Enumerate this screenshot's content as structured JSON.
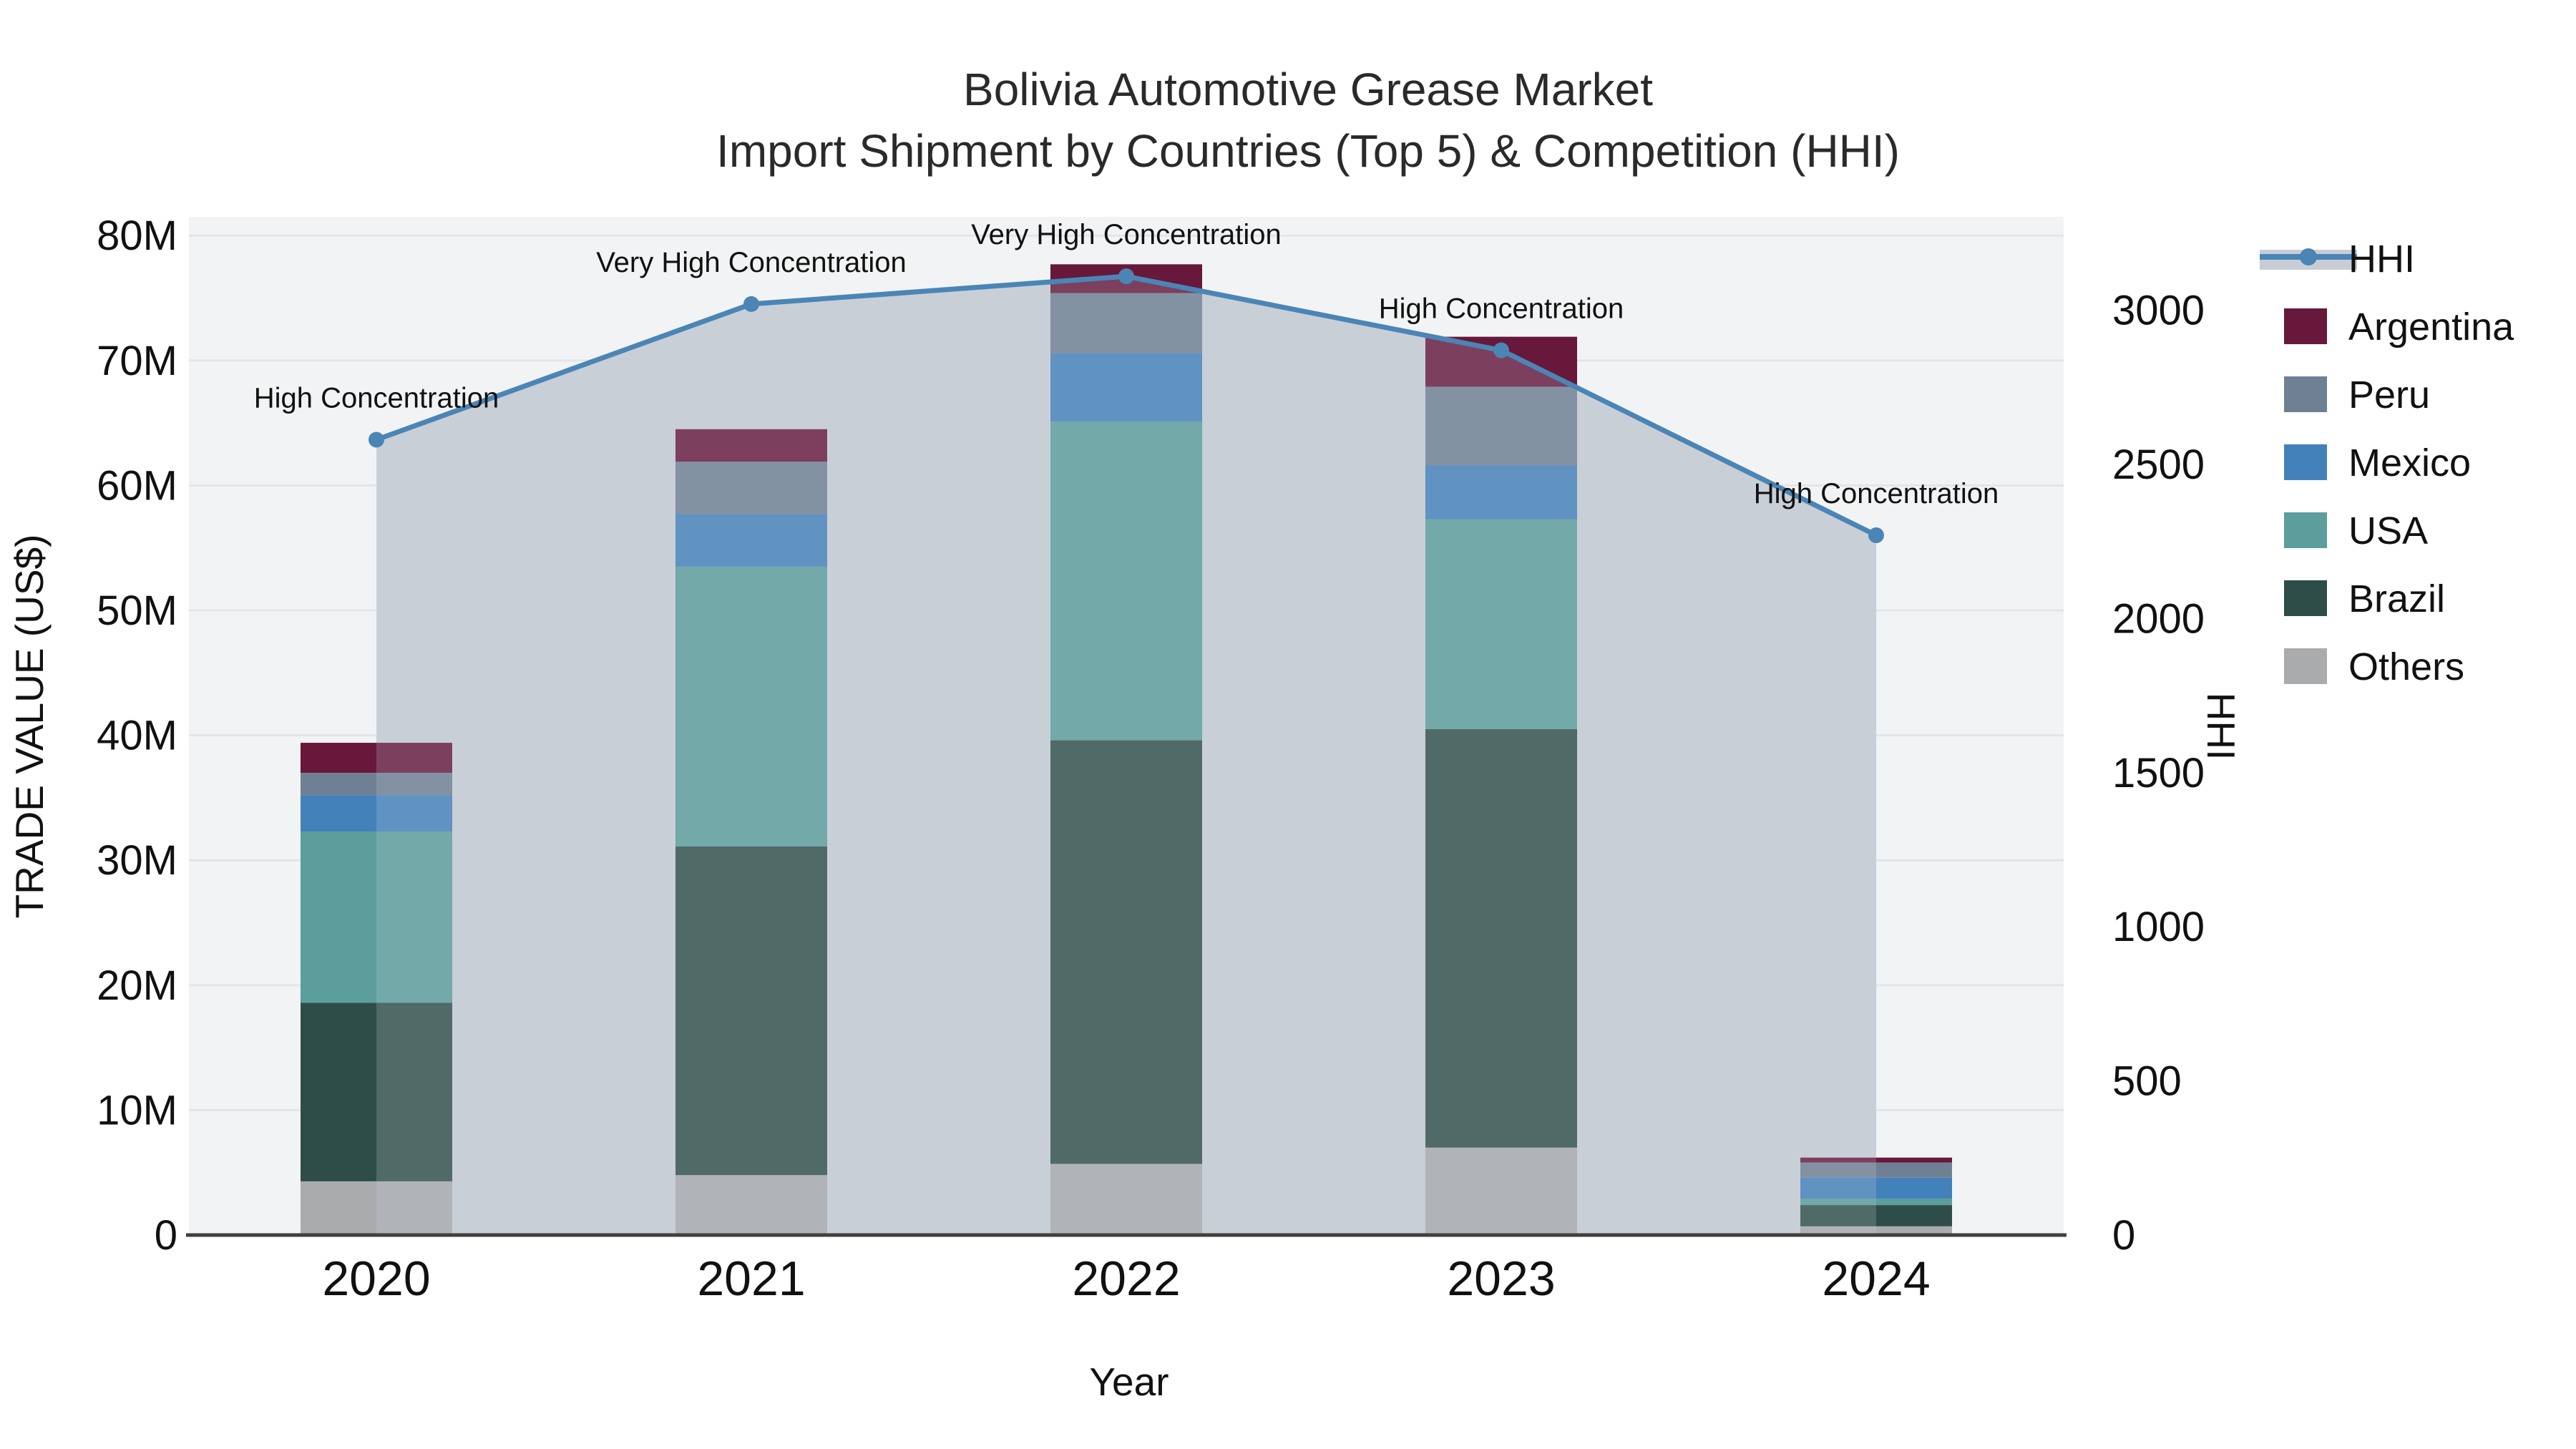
{
  "title": {
    "line1": "Bolivia Automotive Grease Market",
    "line2": "Import Shipment by Countries (Top 5) & Competition (HHI)"
  },
  "axes": {
    "x_title": "Year",
    "y_left_title": "TRADE VALUE (US$)",
    "y_right_title": "HHI",
    "y_left_ticks": [
      "0",
      "10M",
      "20M",
      "30M",
      "40M",
      "50M",
      "60M",
      "70M",
      "80M"
    ],
    "y_right_ticks": [
      "0",
      "500",
      "1000",
      "1500",
      "2000",
      "2500",
      "3000"
    ]
  },
  "legend": {
    "items": [
      {
        "label": "HHI",
        "type": "line+area",
        "color": "#4a85b6"
      },
      {
        "label": "Argentina",
        "type": "swatch",
        "color": "#67183b"
      },
      {
        "label": "Peru",
        "type": "swatch",
        "color": "#708094"
      },
      {
        "label": "Mexico",
        "type": "swatch",
        "color": "#4381bb"
      },
      {
        "label": "USA",
        "type": "swatch",
        "color": "#5c9e9c"
      },
      {
        "label": "Brazil",
        "type": "swatch",
        "color": "#2f4d48"
      },
      {
        "label": "Others",
        "type": "swatch",
        "color": "#aaabad"
      }
    ]
  },
  "colors": {
    "background": "#ffffff",
    "plot_bg": "#f2f3f4",
    "grid": "#e3e5e8",
    "axis_line": "#3f3f3f",
    "text": "#111111",
    "hhi_line": "#4a85b6",
    "hhi_fill": "#c8cdd5",
    "fill_overlay": "rgba(201,208,220,0.22)"
  },
  "chart_data": {
    "type": "bar+line",
    "bar_mode": "stacked",
    "categories": [
      "2020",
      "2021",
      "2022",
      "2023",
      "2024"
    ],
    "bar_value_unit": "million US$",
    "series": [
      {
        "name": "Others",
        "color": "#aaabad",
        "values": [
          4.3,
          4.8,
          5.7,
          7.0,
          0.7
        ]
      },
      {
        "name": "Brazil",
        "color": "#2f4d48",
        "values": [
          14.3,
          26.3,
          33.9,
          33.5,
          1.7
        ]
      },
      {
        "name": "USA",
        "color": "#5c9e9c",
        "values": [
          13.7,
          22.4,
          25.5,
          16.8,
          0.5
        ]
      },
      {
        "name": "Mexico",
        "color": "#4381bb",
        "values": [
          2.9,
          4.2,
          5.5,
          4.3,
          1.7
        ]
      },
      {
        "name": "Peru",
        "color": "#708094",
        "values": [
          1.8,
          4.2,
          4.8,
          6.3,
          1.2
        ]
      },
      {
        "name": "Argentina",
        "color": "#67183b",
        "values": [
          2.4,
          2.6,
          2.3,
          4.0,
          0.4
        ]
      }
    ],
    "bar_totals": [
      39.4,
      64.5,
      77.7,
      71.9,
      6.2
    ],
    "line": {
      "name": "HHI",
      "color": "#4a85b6",
      "fill_color": "#c8cdd5",
      "values": [
        2580,
        3020,
        3110,
        2870,
        2270
      ]
    },
    "annotations": [
      "High Concentration",
      "Very High Concentration",
      "Very High Concentration",
      "High Concentration",
      "High Concentration"
    ],
    "xlabel": "Year",
    "ylabel_left": "TRADE VALUE (US$)",
    "ylabel_right": "HHI",
    "ylim_left": [
      0,
      81.5
    ],
    "ylim_right": [
      0,
      3303
    ],
    "y_left_tick_step_millions": 10,
    "y_right_tick_step": 500,
    "grid": true,
    "legend_position": "right"
  }
}
